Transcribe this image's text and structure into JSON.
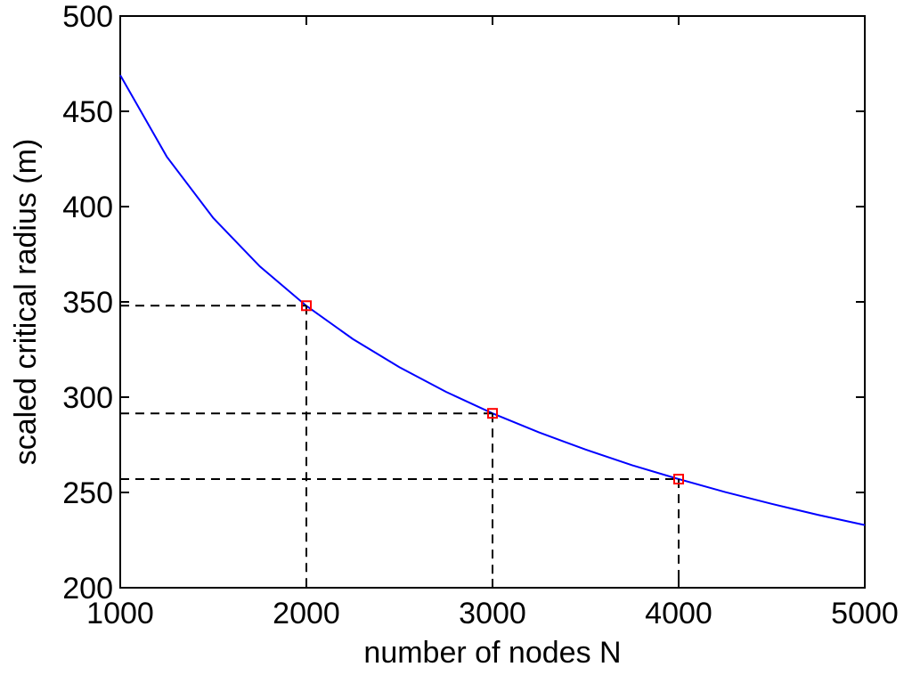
{
  "chart_data": {
    "type": "line",
    "xlabel": "number of nodes N",
    "ylabel": "scaled critical radius (m)",
    "x": [
      1000,
      1250,
      1500,
      1750,
      2000,
      2250,
      2500,
      2750,
      3000,
      3250,
      3500,
      3750,
      4000,
      4250,
      4500,
      4750,
      5000
    ],
    "series": [
      {
        "color": "#0000ff",
        "values": [
          469.0,
          426.2,
          394.0,
          368.6,
          347.9,
          330.5,
          315.7,
          302.8,
          291.5,
          281.5,
          272.5,
          264.3,
          257.0,
          250.2,
          244.0,
          238.2,
          232.9
        ]
      }
    ],
    "markers": {
      "color": "#ff0000",
      "x": [
        2000,
        3000,
        4000
      ],
      "values": [
        348,
        291.5,
        257
      ]
    },
    "xlim": [
      1000,
      5000
    ],
    "xticks": [
      1000,
      2000,
      3000,
      4000,
      5000
    ],
    "ylim": [
      200,
      500
    ],
    "yticks": [
      200,
      250,
      300,
      350,
      400,
      450,
      500
    ],
    "grid": false
  }
}
